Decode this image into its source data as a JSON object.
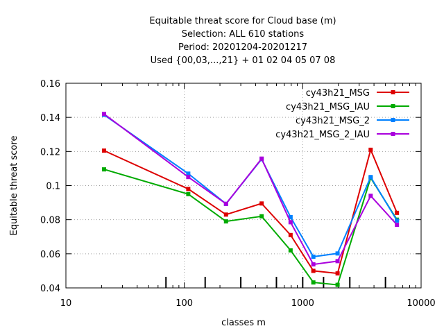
{
  "chart_data": {
    "type": "line",
    "title_lines": [
      "Equitable threat score  for Cloud base (m)",
      "Selection: ALL    610 stations",
      "Period: 20201204-20201217",
      "Used {00,03,...,21} + 01 02 04 05 07 08"
    ],
    "xlabel": "classes m",
    "ylabel": "Equitable threat score",
    "x_scale": "log",
    "xlim": [
      10,
      10000
    ],
    "ylim": [
      0.04,
      0.16
    ],
    "x_ticks": [
      {
        "value": 10,
        "label": "10"
      },
      {
        "value": 100,
        "label": "100"
      },
      {
        "value": 1000,
        "label": "1000"
      },
      {
        "value": 10000,
        "label": "10000"
      }
    ],
    "y_ticks": [
      {
        "value": 0.04,
        "label": "0.04"
      },
      {
        "value": 0.06,
        "label": "0.06"
      },
      {
        "value": 0.08,
        "label": "0.08"
      },
      {
        "value": 0.1,
        "label": "0.1"
      },
      {
        "value": 0.12,
        "label": "0.12"
      },
      {
        "value": 0.14,
        "label": "0.14"
      },
      {
        "value": 0.16,
        "label": "0.16"
      }
    ],
    "grid": true,
    "legend_position": "top-right",
    "x": [
      21,
      108,
      225,
      450,
      790,
      1230,
      1970,
      3750,
      6250
    ],
    "class_markers": [
      70,
      150,
      300,
      600,
      1000,
      1500,
      2500,
      5000
    ],
    "series": [
      {
        "name": "cy43h21_MSG",
        "color": "#dd0000",
        "values": [
          0.1205,
          0.098,
          0.083,
          0.0895,
          0.071,
          0.05,
          0.0485,
          0.121,
          0.084
        ]
      },
      {
        "name": "cy43h21_MSG_IAU",
        "color": "#00aa00",
        "values": [
          0.1095,
          0.095,
          0.079,
          0.082,
          0.062,
          0.0432,
          0.0418,
          0.1045,
          0.08
        ]
      },
      {
        "name": "cy43h21_MSG_2",
        "color": "#0080ff",
        "values": [
          0.1415,
          0.107,
          0.0893,
          0.1155,
          0.0815,
          0.0583,
          0.0602,
          0.105,
          0.0795
        ]
      },
      {
        "name": "cy43h21_MSG_2_IAU",
        "color": "#aa00dd",
        "values": [
          0.142,
          0.105,
          0.0893,
          0.1158,
          0.0785,
          0.0538,
          0.0557,
          0.094,
          0.077
        ]
      }
    ]
  }
}
